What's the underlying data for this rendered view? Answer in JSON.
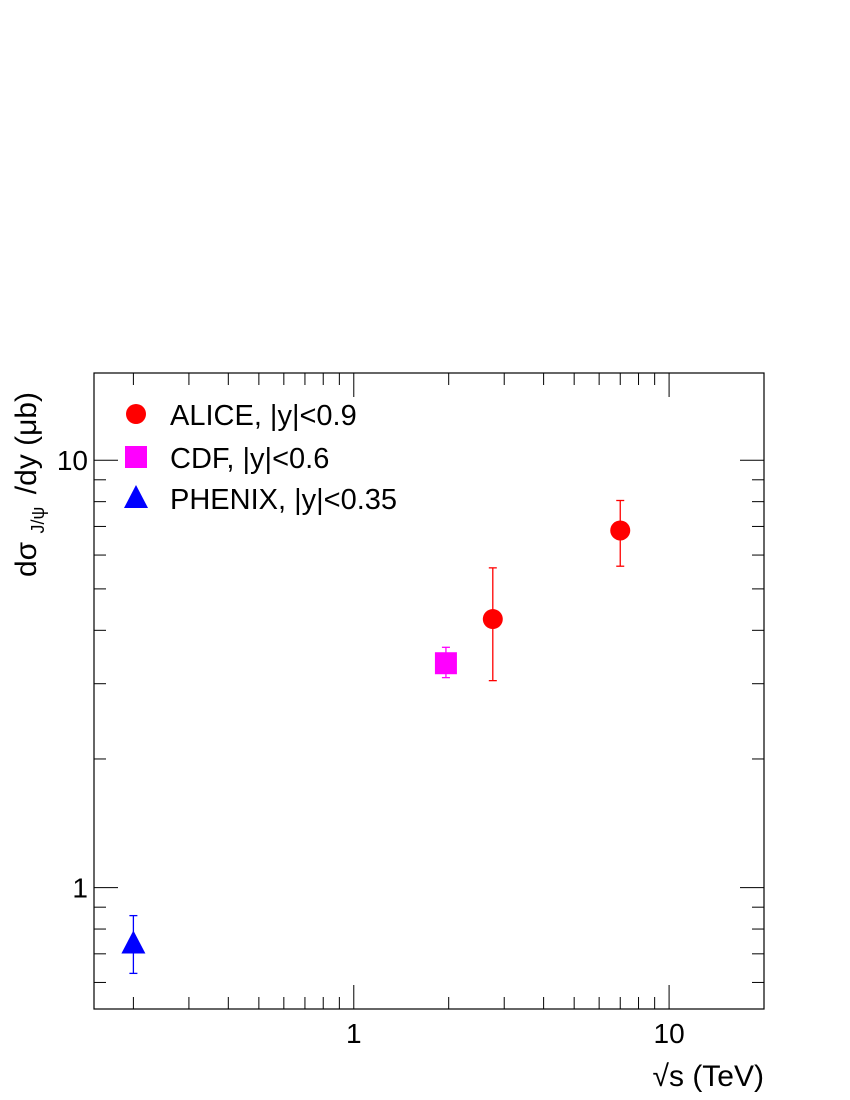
{
  "chart_data": {
    "type": "scatter",
    "title": "",
    "xlabel": "√s (TeV)",
    "ylabel": "dσ",
    "ylabel_sub": "J/ψ",
    "ylabel_tail": "/dy (μb)",
    "xscale": "log",
    "yscale": "log",
    "xlim": [
      0.15,
      20
    ],
    "ylim": [
      0.52,
      16
    ],
    "x_tick_labels": [
      {
        "value": 1,
        "label": "1"
      },
      {
        "value": 10,
        "label": "10"
      }
    ],
    "y_tick_labels": [
      {
        "value": 1,
        "label": "1"
      },
      {
        "value": 10,
        "label": "10"
      }
    ],
    "grid": false,
    "legend_position": "top-left",
    "series": [
      {
        "name": "ALICE, |y|<0.9",
        "marker": "circle",
        "color": "#ff0000",
        "points": [
          {
            "x": 2.76,
            "y": 4.25,
            "err_low": 1.2,
            "err_high": 1.35
          },
          {
            "x": 7.0,
            "y": 6.85,
            "err_low": 1.2,
            "err_high": 1.2
          }
        ]
      },
      {
        "name": "CDF, |y|<0.6",
        "marker": "square",
        "color": "#ff00ff",
        "points": [
          {
            "x": 1.96,
            "y": 3.35,
            "err_low": 0.25,
            "err_high": 0.3
          }
        ]
      },
      {
        "name": "PHENIX, |y|<0.35",
        "marker": "triangle",
        "color": "#0000ff",
        "points": [
          {
            "x": 0.2,
            "y": 0.74,
            "err_low": 0.11,
            "err_high": 0.12
          }
        ]
      }
    ]
  }
}
